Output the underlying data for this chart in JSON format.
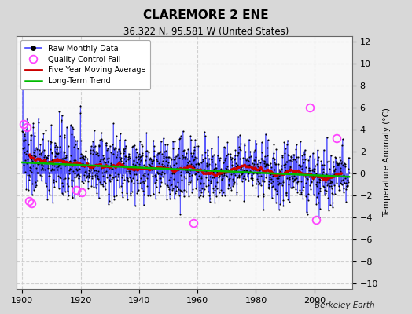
{
  "title": "CLAREMORE 2 ENE",
  "subtitle": "36.322 N, 95.581 W (United States)",
  "ylabel": "Temperature Anomaly (°C)",
  "credit": "Berkeley Earth",
  "year_start": 1900,
  "year_end": 2012,
  "ylim": [
    -10.5,
    12.5
  ],
  "yticks": [
    -10,
    -8,
    -6,
    -4,
    -2,
    0,
    2,
    4,
    6,
    8,
    10,
    12
  ],
  "xlim": [
    1898,
    2013
  ],
  "xticks": [
    1900,
    1920,
    1940,
    1960,
    1980,
    2000
  ],
  "raw_color": "#4444ff",
  "marker_color": "#000000",
  "qc_color": "#ff44ff",
  "moving_avg_color": "#cc0000",
  "trend_color": "#00bb00",
  "background_color": "#d8d8d8",
  "plot_background": "#f8f8f8",
  "grid_color": "#cccccc",
  "legend_loc": "upper left",
  "seed": 137
}
